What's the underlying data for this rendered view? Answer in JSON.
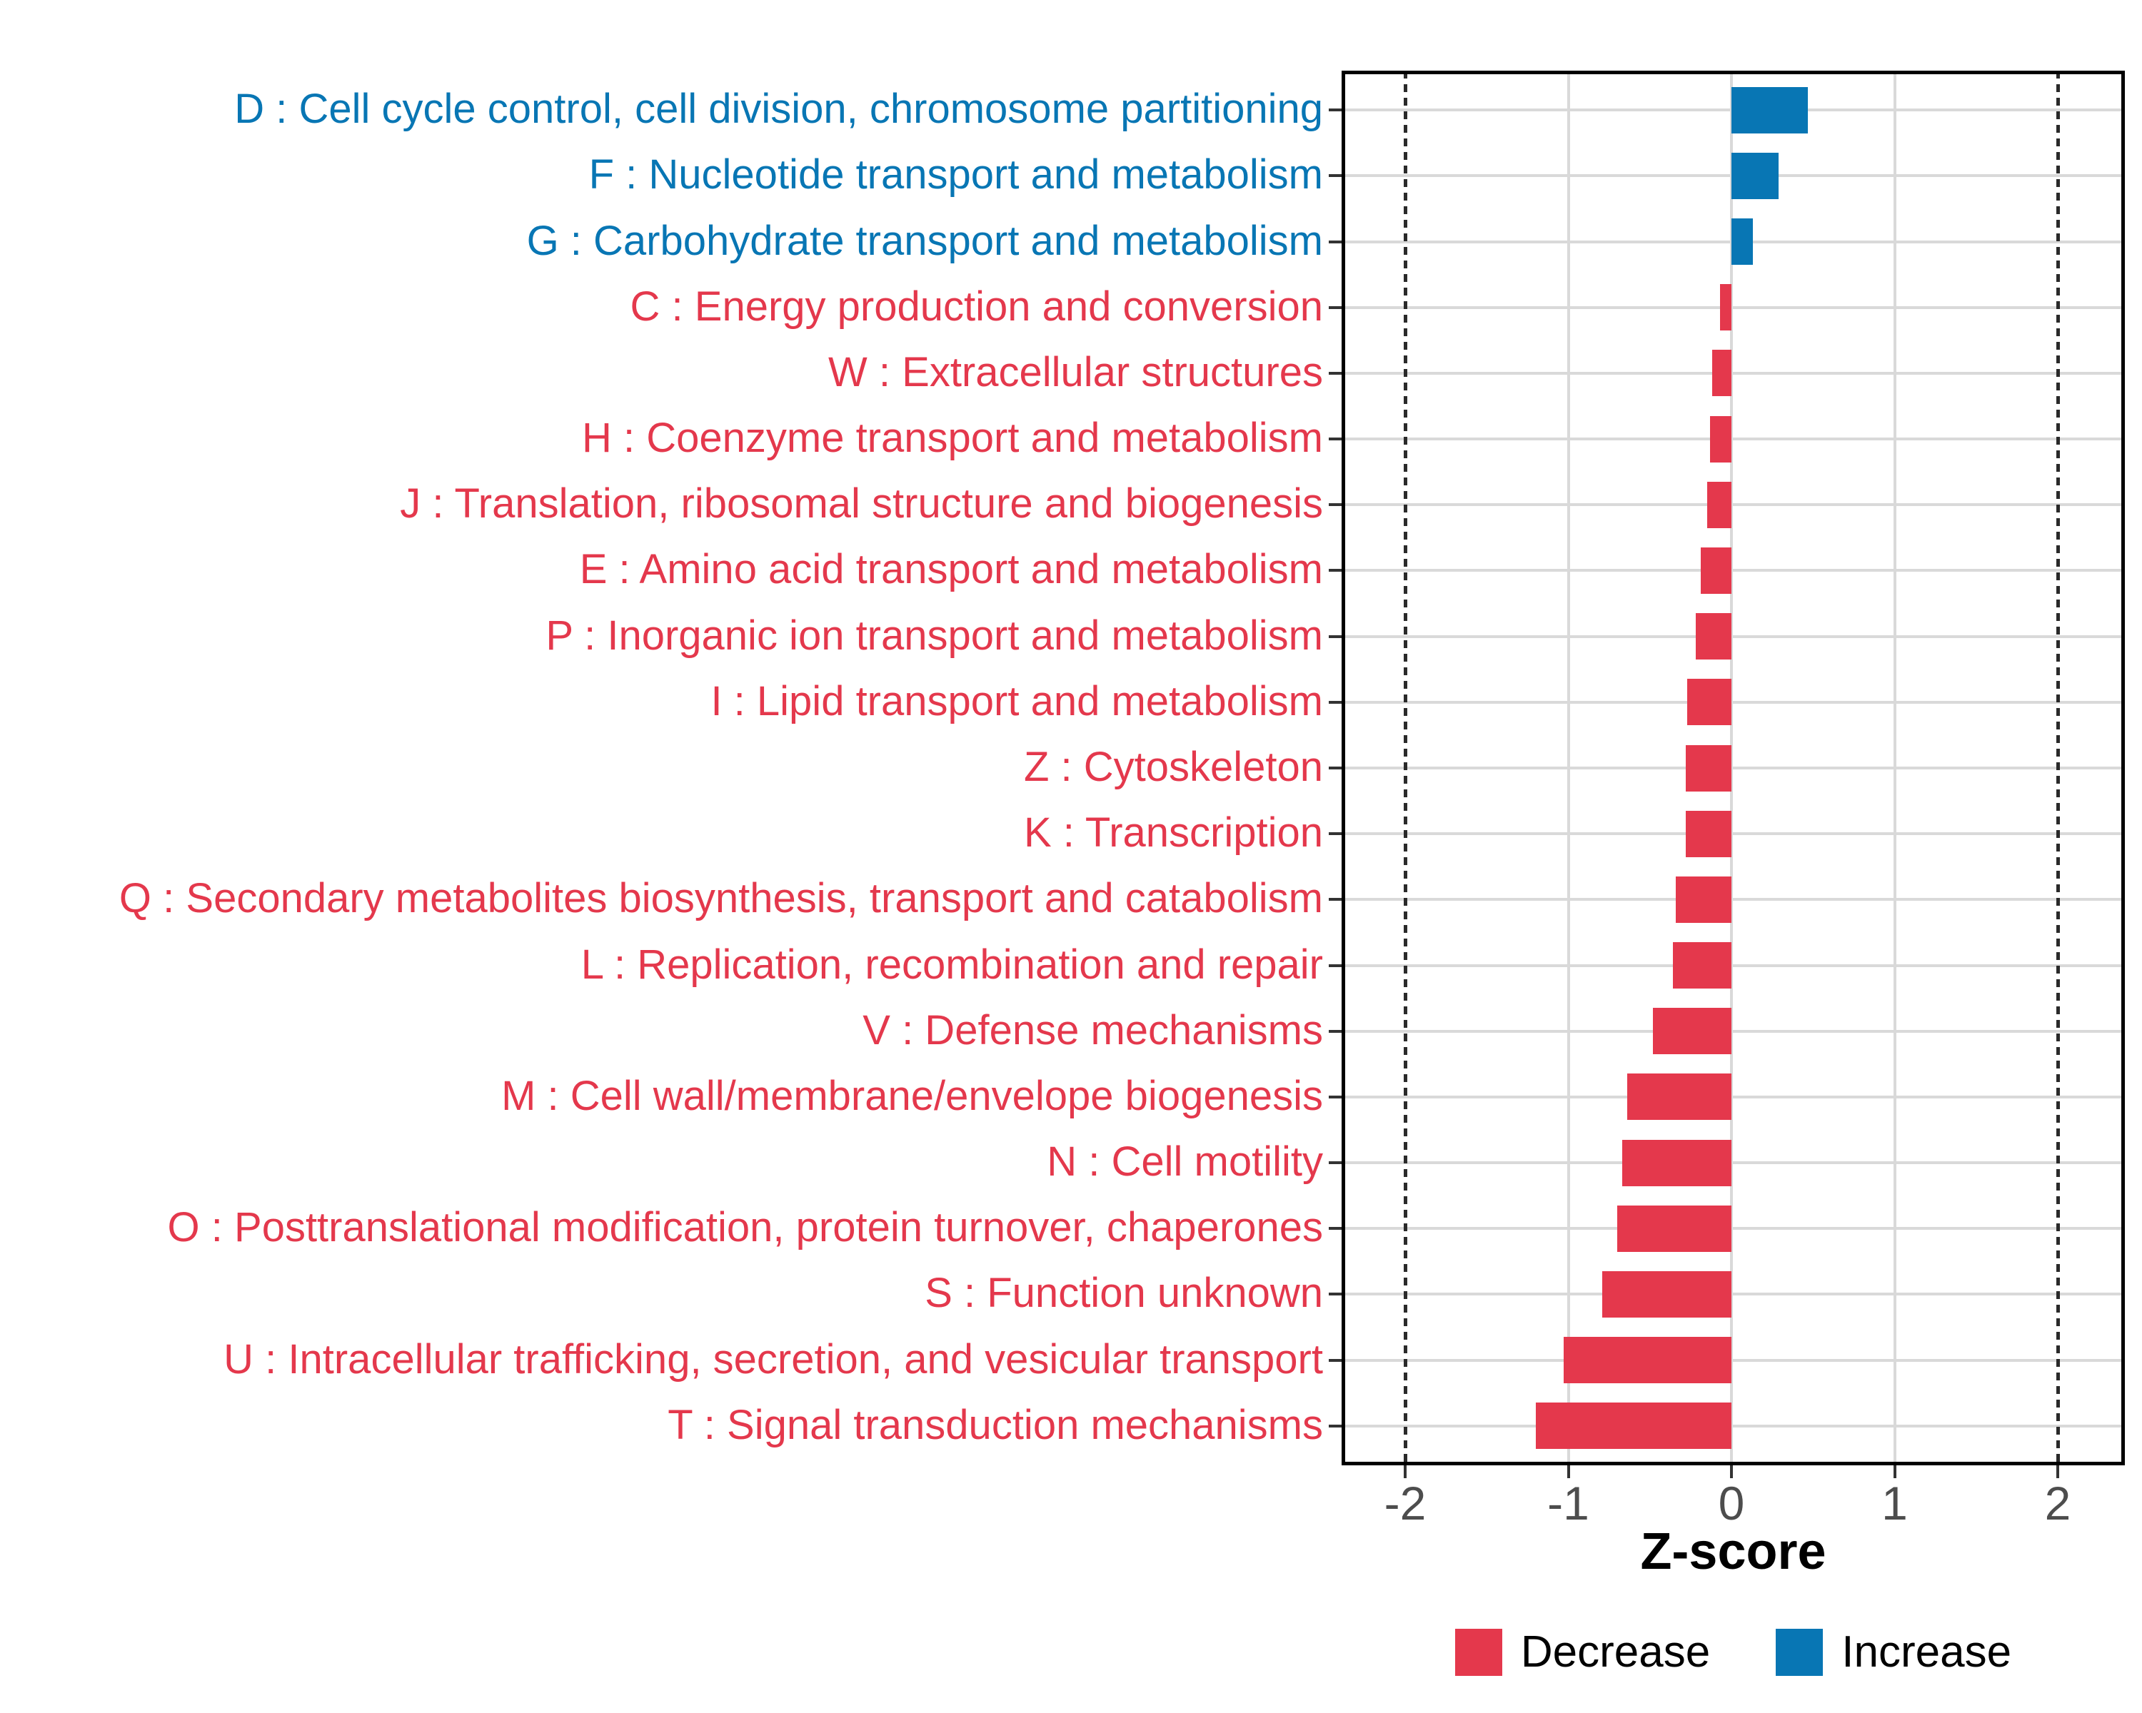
{
  "figure": {
    "background": "#FFFFFF"
  },
  "colors": {
    "increase": "#0876B4",
    "decrease": "#E4384C",
    "gridline": "#D9D9D9",
    "reference_line": "#2A2A2A",
    "axis_text": "#4D4D4D",
    "tick": "#333333",
    "panel_border": "#000000"
  },
  "chart_data": {
    "type": "bar",
    "orientation": "horizontal",
    "xlabel": "Z-score",
    "xlim": [
      -2.39,
      2.41
    ],
    "x_tick_labels": [
      "-2",
      "-1",
      "0",
      "1",
      "2"
    ],
    "x_tick_values": [
      -2,
      -1,
      0,
      1,
      2
    ],
    "gridline_values": [
      -1,
      0,
      1
    ],
    "reference_line_values": [
      -2,
      2
    ],
    "grid": "major-only",
    "legend": {
      "position": "bottom",
      "items": [
        {
          "label": "Decrease",
          "color": "#E4384C"
        },
        {
          "label": "Increase",
          "color": "#0876B4"
        }
      ]
    },
    "categories": [
      {
        "code": "D",
        "label": "D : Cell cycle control, cell division, chromosome partitioning",
        "value": 0.47,
        "group": "Increase"
      },
      {
        "code": "F",
        "label": "F : Nucleotide transport and metabolism",
        "value": 0.29,
        "group": "Increase"
      },
      {
        "code": "G",
        "label": "G : Carbohydrate transport and metabolism",
        "value": 0.13,
        "group": "Increase"
      },
      {
        "code": "C",
        "label": "C : Energy production and conversion",
        "value": -0.07,
        "group": "Decrease"
      },
      {
        "code": "W",
        "label": "W : Extracellular structures",
        "value": -0.12,
        "group": "Decrease"
      },
      {
        "code": "H",
        "label": "H : Coenzyme transport and metabolism",
        "value": -0.13,
        "group": "Decrease"
      },
      {
        "code": "J",
        "label": "J : Translation, ribosomal structure and biogenesis",
        "value": -0.15,
        "group": "Decrease"
      },
      {
        "code": "E",
        "label": "E : Amino acid transport and metabolism",
        "value": -0.19,
        "group": "Decrease"
      },
      {
        "code": "P",
        "label": "P : Inorganic ion transport and metabolism",
        "value": -0.22,
        "group": "Decrease"
      },
      {
        "code": "I",
        "label": "I : Lipid transport and metabolism",
        "value": -0.27,
        "group": "Decrease"
      },
      {
        "code": "Z",
        "label": "Z : Cytoskeleton",
        "value": -0.28,
        "group": "Decrease"
      },
      {
        "code": "K",
        "label": "K : Transcription",
        "value": -0.28,
        "group": "Decrease"
      },
      {
        "code": "Q",
        "label": "Q : Secondary metabolites biosynthesis, transport and catabolism",
        "value": -0.34,
        "group": "Decrease"
      },
      {
        "code": "L",
        "label": "L : Replication, recombination and repair",
        "value": -0.36,
        "group": "Decrease"
      },
      {
        "code": "V",
        "label": "V : Defense mechanisms",
        "value": -0.48,
        "group": "Decrease"
      },
      {
        "code": "M",
        "label": "M : Cell wall/membrane/envelope biogenesis",
        "value": -0.64,
        "group": "Decrease"
      },
      {
        "code": "N",
        "label": "N : Cell motility",
        "value": -0.67,
        "group": "Decrease"
      },
      {
        "code": "O",
        "label": "O : Posttranslational modification, protein turnover, chaperones",
        "value": -0.7,
        "group": "Decrease"
      },
      {
        "code": "S",
        "label": "S : Function unknown",
        "value": -0.79,
        "group": "Decrease"
      },
      {
        "code": "U",
        "label": "U : Intracellular trafficking, secretion, and vesicular transport",
        "value": -1.03,
        "group": "Decrease"
      },
      {
        "code": "T",
        "label": "T : Signal transduction mechanisms",
        "value": -1.2,
        "group": "Decrease"
      }
    ]
  }
}
